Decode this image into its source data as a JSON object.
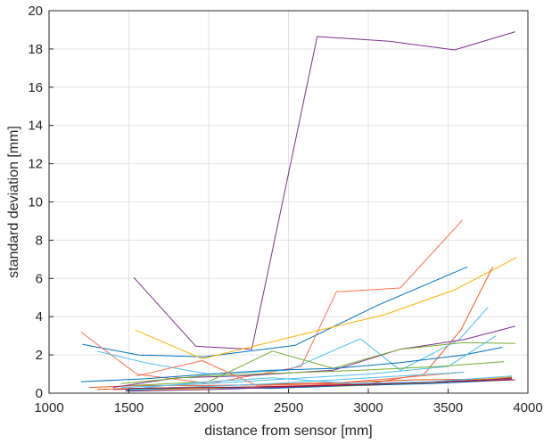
{
  "chart_data": {
    "type": "line",
    "title": "",
    "xlabel": "distance from sensor [mm]",
    "ylabel": "standard deviation [mm]",
    "xlim": [
      1000,
      4000
    ],
    "ylim": [
      0,
      20
    ],
    "xticks": [
      1000,
      1500,
      2000,
      2500,
      3000,
      3500,
      4000
    ],
    "yticks": [
      0,
      2,
      4,
      6,
      8,
      10,
      12,
      14,
      16,
      18,
      20
    ],
    "grid": true,
    "legend": "none",
    "series": [
      {
        "color": "#7E2F8E",
        "x": [
          1530,
          1920,
          2270,
          2680,
          3130,
          3540,
          3920
        ],
        "y": [
          6.05,
          2.45,
          2.3,
          18.65,
          18.4,
          17.95,
          18.9
        ]
      },
      {
        "color": "#0072BD",
        "x": [
          1210,
          1560,
          1970,
          2540,
          3060,
          3620
        ],
        "y": [
          2.55,
          2.0,
          1.9,
          2.5,
          4.6,
          6.6
        ]
      },
      {
        "color": "#FF6F4F",
        "x": [
          1200,
          1550,
          2000,
          2580,
          2800,
          3200,
          3590
        ],
        "y": [
          3.2,
          1.0,
          0.5,
          1.4,
          5.3,
          5.5,
          9.05
        ]
      },
      {
        "color": "#FFB000",
        "x": [
          1540,
          1960,
          2550,
          3100,
          3540,
          3930
        ],
        "y": [
          3.3,
          1.8,
          3.0,
          4.1,
          5.4,
          7.1
        ]
      },
      {
        "color": "#F05A28",
        "x": [
          1250,
          1560,
          2000,
          2500,
          3000,
          3350,
          3580,
          3780
        ],
        "y": [
          0.3,
          0.4,
          0.4,
          0.45,
          0.5,
          1.0,
          3.3,
          6.6
        ]
      },
      {
        "color": "#4DBEEE",
        "x": [
          1300,
          1600,
          2000,
          2500,
          2950,
          3200,
          3570,
          3750
        ],
        "y": [
          2.2,
          1.6,
          1.0,
          1.2,
          2.85,
          1.2,
          2.8,
          4.5
        ]
      },
      {
        "color": "#7E2F8E",
        "x": [
          1400,
          1800,
          2200,
          2780,
          3200,
          3600,
          3920
        ],
        "y": [
          0.3,
          0.8,
          0.9,
          1.2,
          2.3,
          2.8,
          3.5
        ]
      },
      {
        "color": "#77AC30",
        "x": [
          1520,
          2000,
          2400,
          2780,
          3200,
          3600,
          3920
        ],
        "y": [
          0.4,
          0.6,
          2.2,
          1.3,
          2.3,
          2.65,
          2.6
        ]
      },
      {
        "color": "#0072BD",
        "x": [
          1200,
          1600,
          2000,
          2400,
          2800,
          3200,
          3600,
          3840
        ],
        "y": [
          0.6,
          0.75,
          1.0,
          1.2,
          1.3,
          1.6,
          2.0,
          2.4
        ]
      },
      {
        "color": "#4DBEEE",
        "x": [
          1450,
          2000,
          2500,
          3000,
          3500,
          3800
        ],
        "y": [
          0.3,
          0.5,
          0.75,
          1.0,
          1.4,
          3.0
        ]
      },
      {
        "color": "#A2142F",
        "x": [
          1400,
          1900,
          2400,
          2900,
          3400,
          3900
        ],
        "y": [
          0.2,
          0.25,
          0.35,
          0.45,
          0.55,
          0.8
        ]
      },
      {
        "color": "#D95319",
        "x": [
          1300,
          1800,
          2300,
          2800,
          3300,
          3900
        ],
        "y": [
          0.2,
          0.3,
          0.45,
          0.55,
          0.7,
          0.75
        ]
      },
      {
        "color": "#EDB120",
        "x": [
          1500,
          2000,
          2500,
          3000,
          3500,
          3900
        ],
        "y": [
          0.15,
          0.25,
          0.3,
          0.4,
          0.6,
          0.85
        ]
      },
      {
        "color": "#77AC30",
        "x": [
          1450,
          1950,
          2450,
          2950,
          3450,
          3850
        ],
        "y": [
          0.5,
          0.9,
          1.05,
          1.2,
          1.4,
          1.65
        ]
      },
      {
        "color": "#0072BD",
        "x": [
          1480,
          1900,
          2400,
          2900,
          3400,
          3900
        ],
        "y": [
          0.15,
          0.3,
          0.25,
          0.4,
          0.5,
          0.7
        ]
      },
      {
        "color": "#7E2F8E",
        "x": [
          1480,
          2050,
          2600,
          3100,
          3580,
          3900
        ],
        "y": [
          0.1,
          0.2,
          0.35,
          0.5,
          0.65,
          0.75
        ]
      },
      {
        "color": "#FF6F4F",
        "x": [
          1550,
          1960,
          2300,
          2750,
          3200,
          3600
        ],
        "y": [
          0.9,
          1.7,
          0.4,
          0.5,
          0.8,
          1.1
        ]
      },
      {
        "color": "#4DBEEE",
        "x": [
          1500,
          2000,
          2400,
          2800,
          3200,
          3600
        ],
        "y": [
          0.2,
          0.35,
          0.5,
          0.7,
          0.9,
          1.1
        ]
      },
      {
        "color": "#A2142F",
        "x": [
          1500,
          2000,
          2500,
          3000,
          3500,
          3920
        ],
        "y": [
          0.25,
          0.3,
          0.35,
          0.45,
          0.6,
          0.7
        ]
      },
      {
        "color": "#4DBEEE",
        "x": [
          1600,
          2000,
          2400,
          2900,
          3400,
          3900
        ],
        "y": [
          0.3,
          0.6,
          0.8,
          0.5,
          0.6,
          0.9
        ]
      }
    ]
  }
}
